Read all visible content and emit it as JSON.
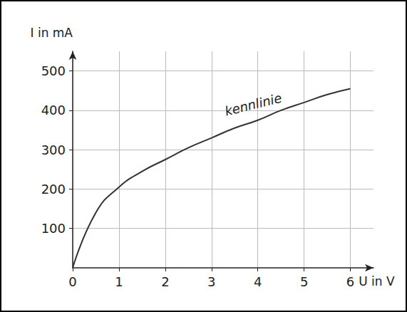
{
  "chart_data": {
    "type": "line",
    "x_label": "U in V",
    "y_label": "I in mA",
    "x": [
      0,
      0.5,
      1,
      1.5,
      2,
      2.5,
      3,
      3.5,
      4,
      4.5,
      5,
      5.5,
      6
    ],
    "values": [
      0,
      140,
      205,
      245,
      275,
      305,
      330,
      355,
      375,
      400,
      420,
      440,
      455
    ],
    "color": "#333333",
    "xlim": [
      0,
      6.5
    ],
    "xticks": [
      0,
      1,
      2,
      3,
      4,
      5,
      6
    ],
    "ylim": [
      0,
      550
    ],
    "yticks": [
      100,
      200,
      300,
      400,
      500
    ],
    "grid": true,
    "annotations": [
      {
        "text": "kennlinie",
        "x": 3.9,
        "y": 415
      }
    ]
  }
}
